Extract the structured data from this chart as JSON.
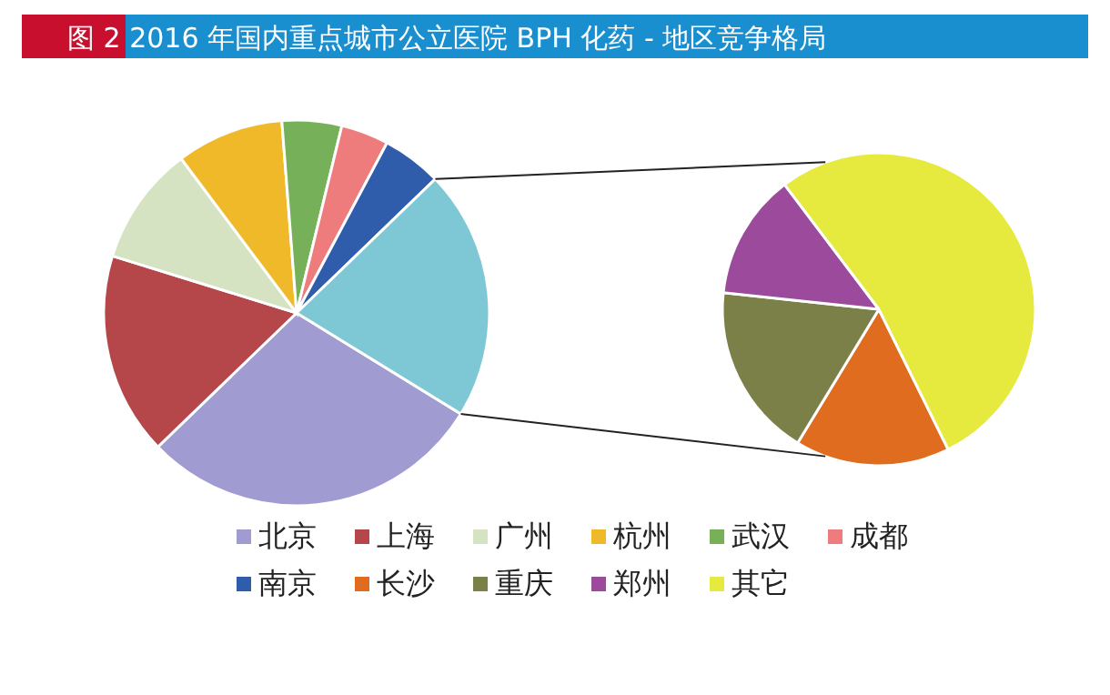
{
  "chart_data": [
    {
      "type": "pie",
      "title": "图 2 2016 年国内重点城市公立医院 BPH 化药 - 地区竞争格局",
      "legend": "bottom",
      "categories": [
        "北京",
        "上海",
        "广州",
        "杭州",
        "武汉",
        "成都",
        "南京",
        null
      ],
      "values": [
        29,
        17,
        10,
        9,
        5,
        4,
        5,
        21
      ],
      "colors": [
        "#a09bd0",
        "#b5474a",
        "#d6e3c3",
        "#f0b92a",
        "#76b15a",
        "#ef7c7c",
        "#2f5cab",
        "#7ec8d6"
      ]
    },
    {
      "type": "pie",
      "legend": "bottom",
      "categories": [
        "长沙",
        "重庆",
        "郑州",
        "其它"
      ],
      "values": [
        16,
        18,
        13,
        53
      ],
      "colors": [
        "#e06c1f",
        "#7b8048",
        "#9b4a9c",
        "#e6ea3e"
      ]
    }
  ]
}
